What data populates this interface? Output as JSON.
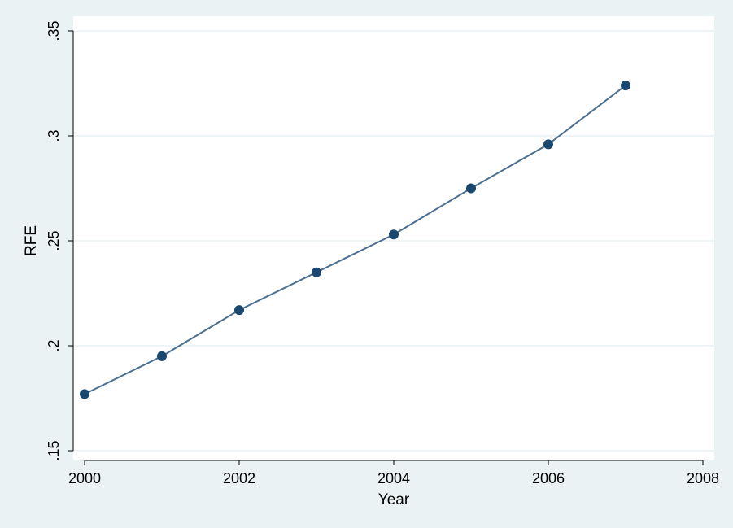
{
  "chart_data": {
    "type": "line",
    "title": "",
    "xlabel": "Year",
    "ylabel": "RFE",
    "x": [
      2000,
      2001,
      2002,
      2003,
      2004,
      2005,
      2006,
      2007
    ],
    "series": [
      {
        "values": [
          0.177,
          0.195,
          0.217,
          0.235,
          0.253,
          0.275,
          0.296,
          0.324
        ]
      }
    ],
    "xlim": [
      2000,
      2008
    ],
    "ylim": [
      0.15,
      0.35
    ],
    "xticks": [
      2000,
      2002,
      2004,
      2006,
      2008
    ],
    "xtick_labels": [
      "2000",
      "2002",
      "2004",
      "2006",
      "2008"
    ],
    "yticks": [
      0.15,
      0.2,
      0.25,
      0.3,
      0.35
    ],
    "ytick_labels": [
      ".15",
      ".2",
      ".25",
      ".3",
      ".35"
    ],
    "grid": true,
    "markers": true
  },
  "colors": {
    "outer_background": "#eaf2f3",
    "plot_background": "#ffffff",
    "gridline": "#eaf2f3",
    "line": "#4a6f8f",
    "marker": "#1a476f",
    "axis": "#000000"
  }
}
